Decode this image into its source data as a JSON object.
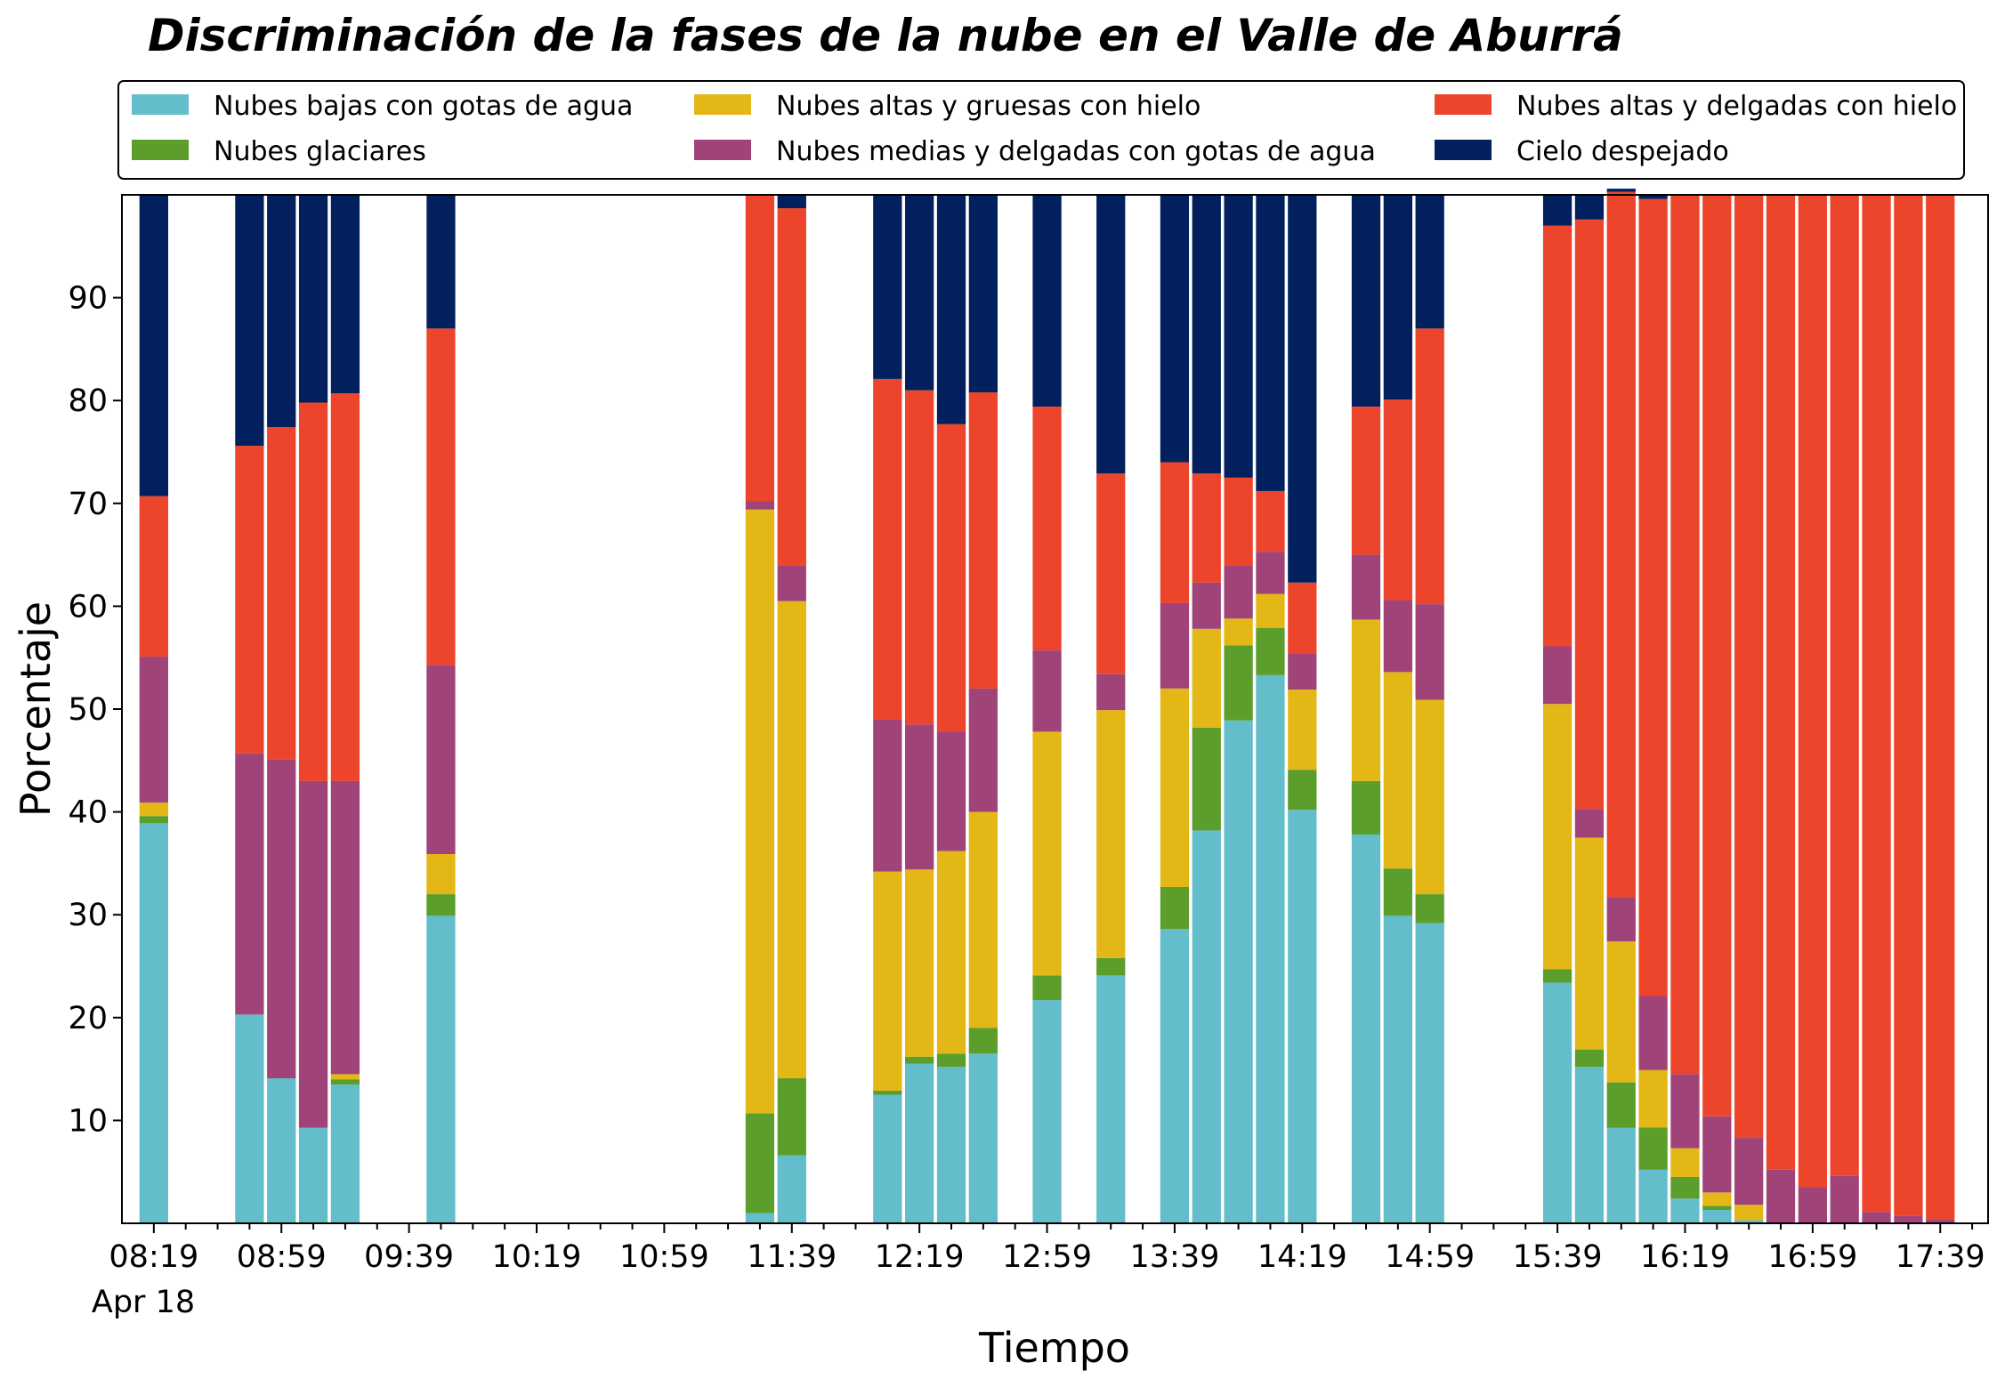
{
  "chart_data": {
    "type": "bar",
    "stacked": true,
    "title": "Discriminación de la fases de la nube en el Valle de Aburrá",
    "xlabel": "Tiempo",
    "ylabel": "Porcentaje",
    "ylim": [
      0,
      100
    ],
    "y_ticks": [
      10,
      20,
      30,
      40,
      50,
      60,
      70,
      80,
      90
    ],
    "x_tick_labels": [
      "08:19",
      "08:59",
      "09:39",
      "10:19",
      "10:59",
      "11:39",
      "12:19",
      "12:59",
      "13:39",
      "14:19",
      "14:59",
      "15:39",
      "16:19",
      "16:59",
      "17:39"
    ],
    "x_date_label": "Apr 18",
    "x_range_minutes": [
      "08:09",
      "17:54"
    ],
    "legend_position": "top (above plot, boxed, 3 columns)",
    "grid": false,
    "series": [
      {
        "name": "Nubes bajas con gotas de agua",
        "color": "#64bdca"
      },
      {
        "name": "Nubes glaciares",
        "color": "#5b9e2b"
      },
      {
        "name": "Nubes altas y gruesas con hielo",
        "color": "#e3b715"
      },
      {
        "name": "Nubes medias y delgadas con gotas de agua",
        "color": "#a04378"
      },
      {
        "name": "Nubes altas y delgadas con hielo",
        "color": "#ec452b"
      },
      {
        "name": "Cielo despejado",
        "color": "#021f5e"
      }
    ],
    "bars": [
      {
        "time": "08:19",
        "segments": [
          38.9,
          0.7,
          1.3,
          14.2,
          15.6,
          29.3
        ]
      },
      {
        "time": "08:49",
        "segments": [
          20.3,
          0,
          0,
          25.4,
          29.9,
          24.4
        ]
      },
      {
        "time": "08:59",
        "segments": [
          14.1,
          0,
          0,
          31.0,
          32.3,
          22.6
        ]
      },
      {
        "time": "09:09",
        "segments": [
          9.3,
          0,
          0,
          33.7,
          36.8,
          20.2
        ]
      },
      {
        "time": "09:19",
        "segments": [
          13.5,
          0.5,
          0.5,
          28.5,
          37.7,
          19.3
        ]
      },
      {
        "time": "09:49",
        "segments": [
          29.9,
          2.1,
          3.9,
          18.4,
          32.7,
          13.0
        ]
      },
      {
        "time": "11:29",
        "segments": [
          1.0,
          9.7,
          58.7,
          0.8,
          29.8,
          0
        ]
      },
      {
        "time": "11:39",
        "segments": [
          6.6,
          7.5,
          46.4,
          3.5,
          34.7,
          1.3
        ]
      },
      {
        "time": "12:09",
        "segments": [
          12.5,
          0.4,
          21.3,
          14.8,
          33.1,
          17.9
        ]
      },
      {
        "time": "12:19",
        "segments": [
          15.5,
          0.7,
          18.2,
          14.1,
          32.5,
          19.0
        ]
      },
      {
        "time": "12:29",
        "segments": [
          15.2,
          1.3,
          19.7,
          11.6,
          29.9,
          22.3
        ]
      },
      {
        "time": "12:39",
        "segments": [
          16.5,
          2.5,
          21.0,
          12.0,
          28.8,
          19.2
        ]
      },
      {
        "time": "12:59",
        "segments": [
          21.7,
          2.4,
          23.7,
          7.9,
          23.7,
          20.6
        ]
      },
      {
        "time": "13:19",
        "segments": [
          24.1,
          1.7,
          24.1,
          3.5,
          19.5,
          27.1
        ]
      },
      {
        "time": "13:39",
        "segments": [
          28.6,
          4.1,
          19.3,
          8.3,
          13.7,
          26.0
        ]
      },
      {
        "time": "13:49",
        "segments": [
          38.2,
          10.0,
          9.6,
          4.5,
          10.6,
          27.1
        ]
      },
      {
        "time": "13:59",
        "segments": [
          48.9,
          7.3,
          2.6,
          5.2,
          8.5,
          27.5
        ]
      },
      {
        "time": "14:09",
        "segments": [
          53.3,
          4.6,
          3.3,
          4.1,
          5.9,
          28.8
        ]
      },
      {
        "time": "14:19",
        "segments": [
          40.2,
          3.9,
          7.8,
          3.5,
          6.9,
          37.7
        ]
      },
      {
        "time": "14:39",
        "segments": [
          37.8,
          5.2,
          15.7,
          6.3,
          14.4,
          20.6
        ]
      },
      {
        "time": "14:49",
        "segments": [
          29.9,
          4.6,
          19.1,
          7.0,
          19.5,
          19.9
        ]
      },
      {
        "time": "14:59",
        "segments": [
          29.2,
          2.8,
          18.9,
          9.3,
          26.8,
          13.0
        ]
      },
      {
        "time": "15:39",
        "segments": [
          23.4,
          1.3,
          25.8,
          5.6,
          40.9,
          3.0
        ]
      },
      {
        "time": "15:49",
        "segments": [
          15.2,
          1.7,
          20.6,
          2.8,
          57.3,
          2.4
        ]
      },
      {
        "time": "15:59",
        "segments": [
          9.3,
          4.4,
          13.7,
          4.3,
          68.6,
          0.3
        ]
      },
      {
        "time": "16:09",
        "segments": [
          5.2,
          4.1,
          5.6,
          7.2,
          77.5,
          0.4
        ]
      },
      {
        "time": "16:19",
        "segments": [
          2.4,
          2.1,
          2.8,
          7.2,
          85.5,
          0
        ]
      },
      {
        "time": "16:29",
        "segments": [
          1.3,
          0.4,
          1.3,
          7.4,
          89.6,
          0
        ]
      },
      {
        "time": "16:39",
        "segments": [
          0.3,
          0,
          1.5,
          6.5,
          91.7,
          0
        ]
      },
      {
        "time": "16:49",
        "segments": [
          0,
          0,
          0,
          5.2,
          94.8,
          0
        ]
      },
      {
        "time": "16:59",
        "segments": [
          0,
          0,
          0,
          3.5,
          96.5,
          0
        ]
      },
      {
        "time": "17:09",
        "segments": [
          0,
          0,
          0,
          4.6,
          95.4,
          0
        ]
      },
      {
        "time": "17:19",
        "segments": [
          0,
          0,
          0,
          1.1,
          98.9,
          0
        ]
      },
      {
        "time": "17:29",
        "segments": [
          0,
          0,
          0,
          0.7,
          99.3,
          0
        ]
      },
      {
        "time": "17:39",
        "segments": [
          0,
          0,
          0,
          0.4,
          99.6,
          0
        ]
      }
    ]
  }
}
